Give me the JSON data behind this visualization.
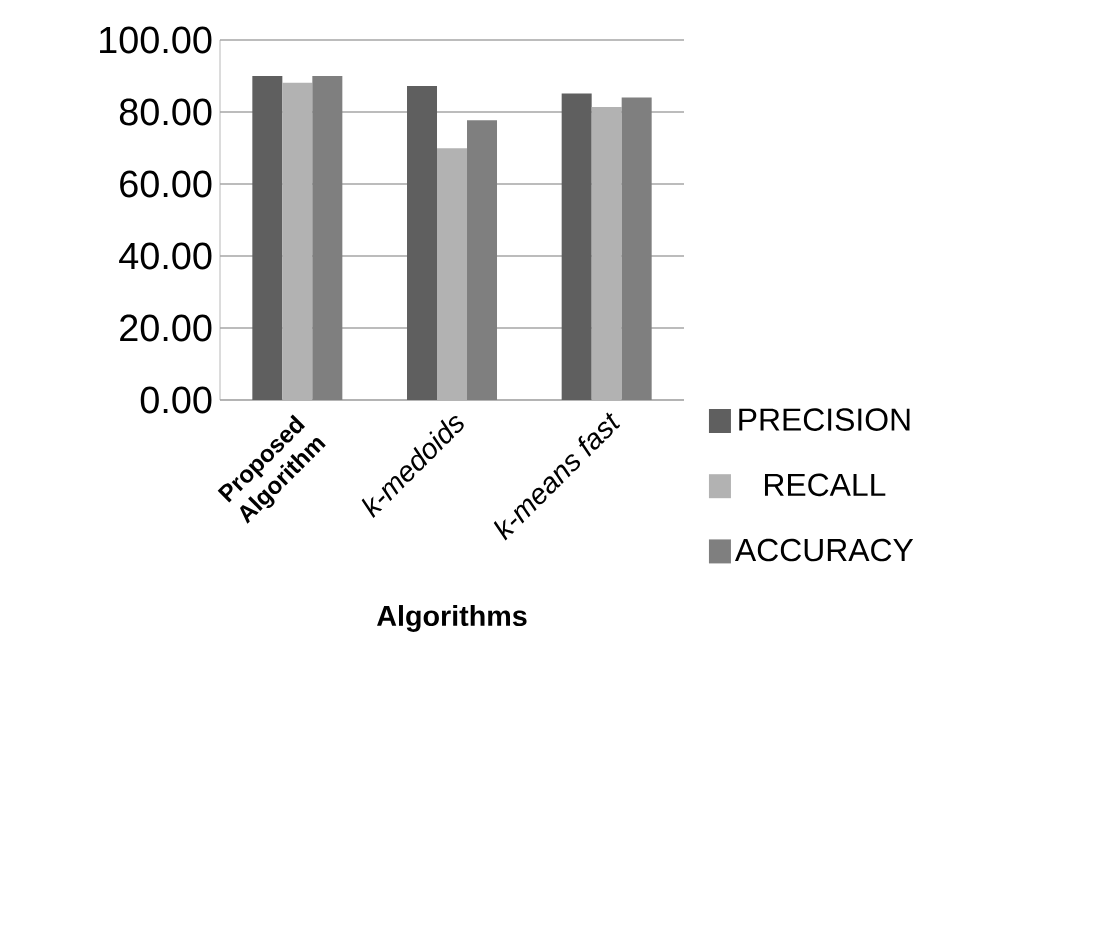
{
  "chart_data": {
    "type": "bar",
    "xlabel": "Algorithms",
    "categories": [
      "Proposed Algorithm",
      "k-medoids",
      "k-means fast"
    ],
    "series": [
      {
        "name": "PRECISION",
        "color": "#5f5f5f",
        "values": [
          90.0,
          87.2,
          85.1
        ]
      },
      {
        "name": "RECALL",
        "color": "#b2b2b2",
        "values": [
          88.1,
          69.9,
          81.4
        ]
      },
      {
        "name": "ACCURACY",
        "color": "#7f7f7f",
        "values": [
          90.0,
          77.7,
          84.0
        ]
      }
    ],
    "ylim": [
      0,
      100
    ],
    "yticks": [
      {
        "value": 0,
        "label": "0.00"
      },
      {
        "value": 20,
        "label": "20.00"
      },
      {
        "value": 40,
        "label": "40.00"
      },
      {
        "value": 60,
        "label": "60.00"
      },
      {
        "value": 80,
        "label": "80.00"
      },
      {
        "value": 100,
        "label": "100.00"
      }
    ],
    "grid": "y",
    "legend": "right"
  }
}
